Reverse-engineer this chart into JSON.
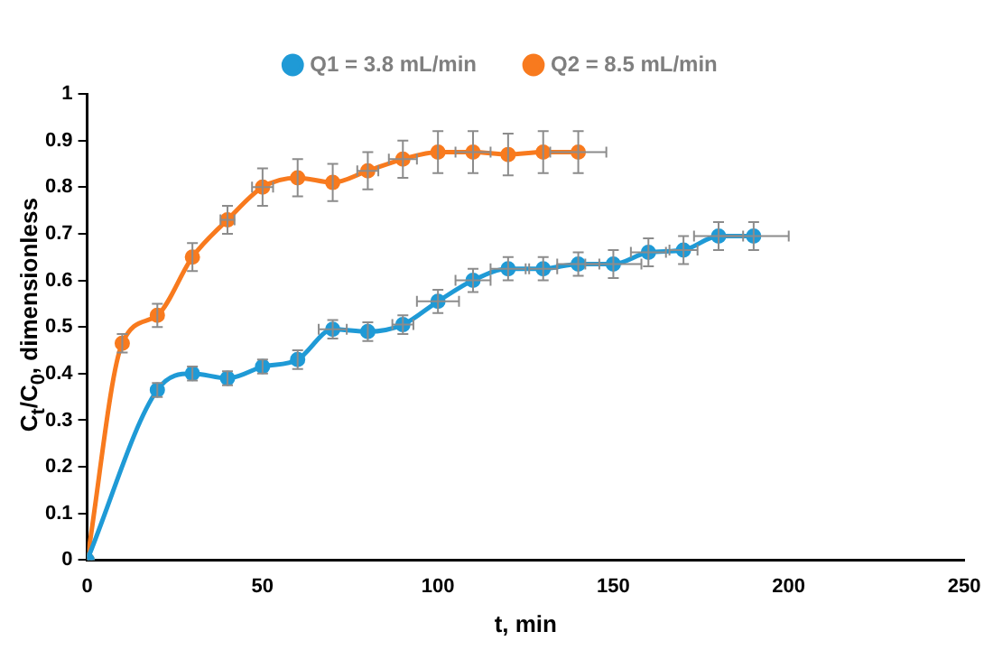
{
  "chart_data": {
    "type": "line",
    "xlabel": "t, min",
    "ylabel": "C$_{t}$/C$_{0}$, dimensionless",
    "xlim": [
      0,
      250
    ],
    "xticks": [
      0,
      50,
      100,
      150,
      200,
      250
    ],
    "ylim": [
      0,
      1
    ],
    "yticks": [
      0,
      0.1,
      0.2,
      0.3,
      0.4,
      0.5,
      0.6,
      0.7,
      0.8,
      0.9,
      1
    ],
    "grid": false,
    "legend": "top",
    "marker": "circle",
    "line_style": "solid",
    "series": [
      {
        "name": "Q1 = 3.8 mL/min",
        "color": "#1f9ad6",
        "x": [
          0,
          20,
          30,
          40,
          50,
          60,
          70,
          80,
          90,
          100,
          110,
          120,
          130,
          140,
          150,
          160,
          170,
          180,
          190
        ],
        "values": [
          0,
          0.365,
          0.4,
          0.39,
          0.415,
          0.43,
          0.495,
          0.49,
          0.505,
          0.555,
          0.6,
          0.625,
          0.625,
          0.635,
          0.635,
          0.66,
          0.665,
          0.695,
          0.695
        ],
        "errors": [
          null,
          0.015,
          0.015,
          0.015,
          0.015,
          0.02,
          0.02,
          0.02,
          0.02,
          0.025,
          0.025,
          0.025,
          0.025,
          0.025,
          0.03,
          0.03,
          0.03,
          0.03,
          0.03
        ],
        "xerrors": [
          null,
          null,
          null,
          null,
          null,
          null,
          4,
          null,
          3,
          6,
          5,
          5,
          4,
          6,
          8,
          5,
          4,
          7,
          10
        ]
      },
      {
        "name": "Q2 = 8.5 mL/min",
        "color": "#f87a1e",
        "x": [
          0,
          10,
          20,
          30,
          40,
          50,
          60,
          70,
          80,
          90,
          100,
          110,
          120,
          130,
          140
        ],
        "values": [
          0,
          0.465,
          0.525,
          0.65,
          0.73,
          0.8,
          0.82,
          0.81,
          0.835,
          0.86,
          0.875,
          0.875,
          0.87,
          0.875,
          0.875
        ],
        "errors": [
          null,
          0.02,
          0.025,
          0.03,
          0.03,
          0.04,
          0.04,
          0.04,
          0.04,
          0.04,
          0.045,
          0.045,
          0.045,
          0.045,
          0.045
        ],
        "xerrors": [
          null,
          null,
          null,
          null,
          2,
          3,
          null,
          null,
          3,
          4,
          null,
          5,
          null,
          null,
          8
        ]
      }
    ]
  }
}
